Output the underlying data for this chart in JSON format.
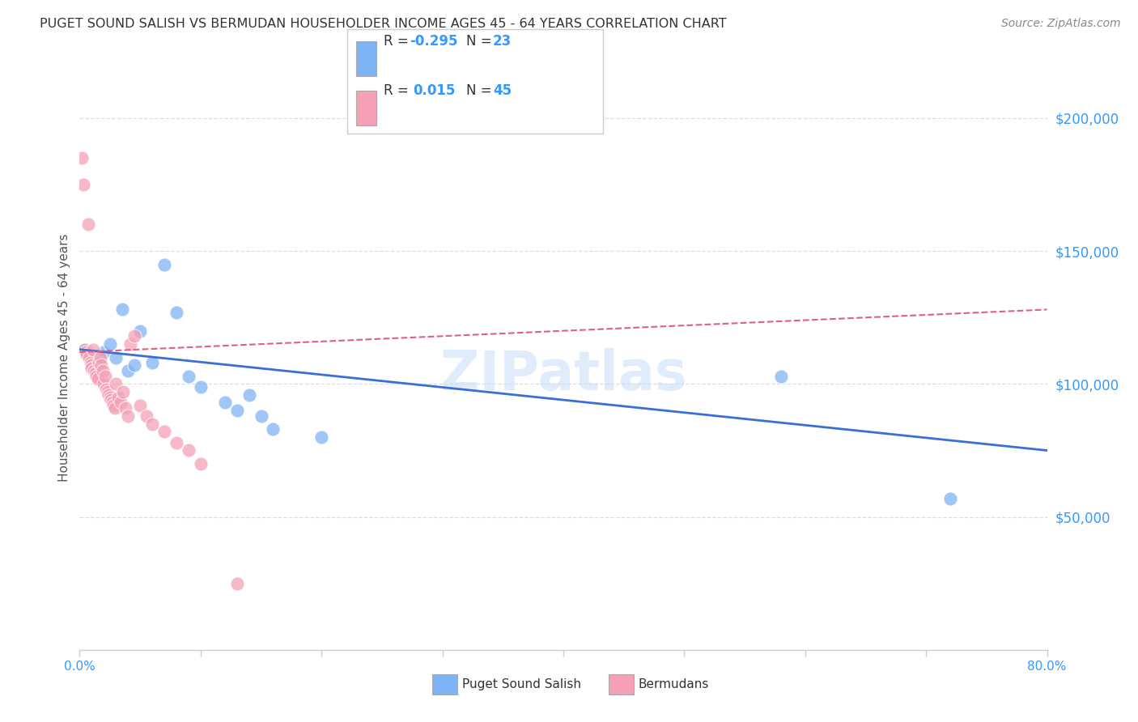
{
  "title": "PUGET SOUND SALISH VS BERMUDAN HOUSEHOLDER INCOME AGES 45 - 64 YEARS CORRELATION CHART",
  "source": "Source: ZipAtlas.com",
  "ylabel": "Householder Income Ages 45 - 64 years",
  "xlim": [
    0.0,
    0.8
  ],
  "ylim": [
    0,
    220000
  ],
  "xticks": [
    0.0,
    0.1,
    0.2,
    0.3,
    0.4,
    0.5,
    0.6,
    0.7,
    0.8
  ],
  "xticklabels": [
    "0.0%",
    "",
    "",
    "",
    "",
    "",
    "",
    "",
    "80.0%"
  ],
  "yticks_right": [
    50000,
    100000,
    150000,
    200000
  ],
  "ytick_labels_right": [
    "$50,000",
    "$100,000",
    "$150,000",
    "$200,000"
  ],
  "legend_label1": "Puget Sound Salish",
  "legend_label2": "Bermudans",
  "blue_color": "#7fb3f5",
  "pink_color": "#f5a0b5",
  "blue_line_color": "#3a6fd8",
  "pink_line_color": "#e06080",
  "bg_color": "#ffffff",
  "watermark": "ZIPatlas",
  "blue_scatter_x": [
    0.005,
    0.01,
    0.015,
    0.02,
    0.025,
    0.03,
    0.035,
    0.04,
    0.045,
    0.05,
    0.06,
    0.07,
    0.08,
    0.09,
    0.1,
    0.12,
    0.13,
    0.14,
    0.15,
    0.16,
    0.2,
    0.58,
    0.72
  ],
  "blue_scatter_y": [
    113000,
    108000,
    110000,
    112000,
    115000,
    110000,
    128000,
    105000,
    107000,
    120000,
    108000,
    145000,
    127000,
    103000,
    99000,
    93000,
    90000,
    96000,
    88000,
    83000,
    80000,
    103000,
    57000
  ],
  "pink_scatter_x": [
    0.002,
    0.003,
    0.004,
    0.005,
    0.006,
    0.007,
    0.008,
    0.009,
    0.01,
    0.01,
    0.011,
    0.012,
    0.013,
    0.014,
    0.015,
    0.016,
    0.017,
    0.018,
    0.019,
    0.02,
    0.021,
    0.022,
    0.023,
    0.024,
    0.025,
    0.026,
    0.027,
    0.028,
    0.029,
    0.03,
    0.032,
    0.034,
    0.036,
    0.038,
    0.04,
    0.042,
    0.045,
    0.05,
    0.055,
    0.06,
    0.07,
    0.08,
    0.09,
    0.1,
    0.13
  ],
  "pink_scatter_y": [
    185000,
    175000,
    113000,
    112000,
    111000,
    160000,
    110000,
    108000,
    107000,
    106000,
    113000,
    105000,
    104000,
    103000,
    102000,
    108000,
    110000,
    107000,
    105000,
    100000,
    103000,
    98000,
    97000,
    96000,
    95000,
    94000,
    93000,
    92000,
    91000,
    100000,
    95000,
    93000,
    97000,
    91000,
    88000,
    115000,
    118000,
    92000,
    88000,
    85000,
    82000,
    78000,
    75000,
    70000,
    25000
  ]
}
